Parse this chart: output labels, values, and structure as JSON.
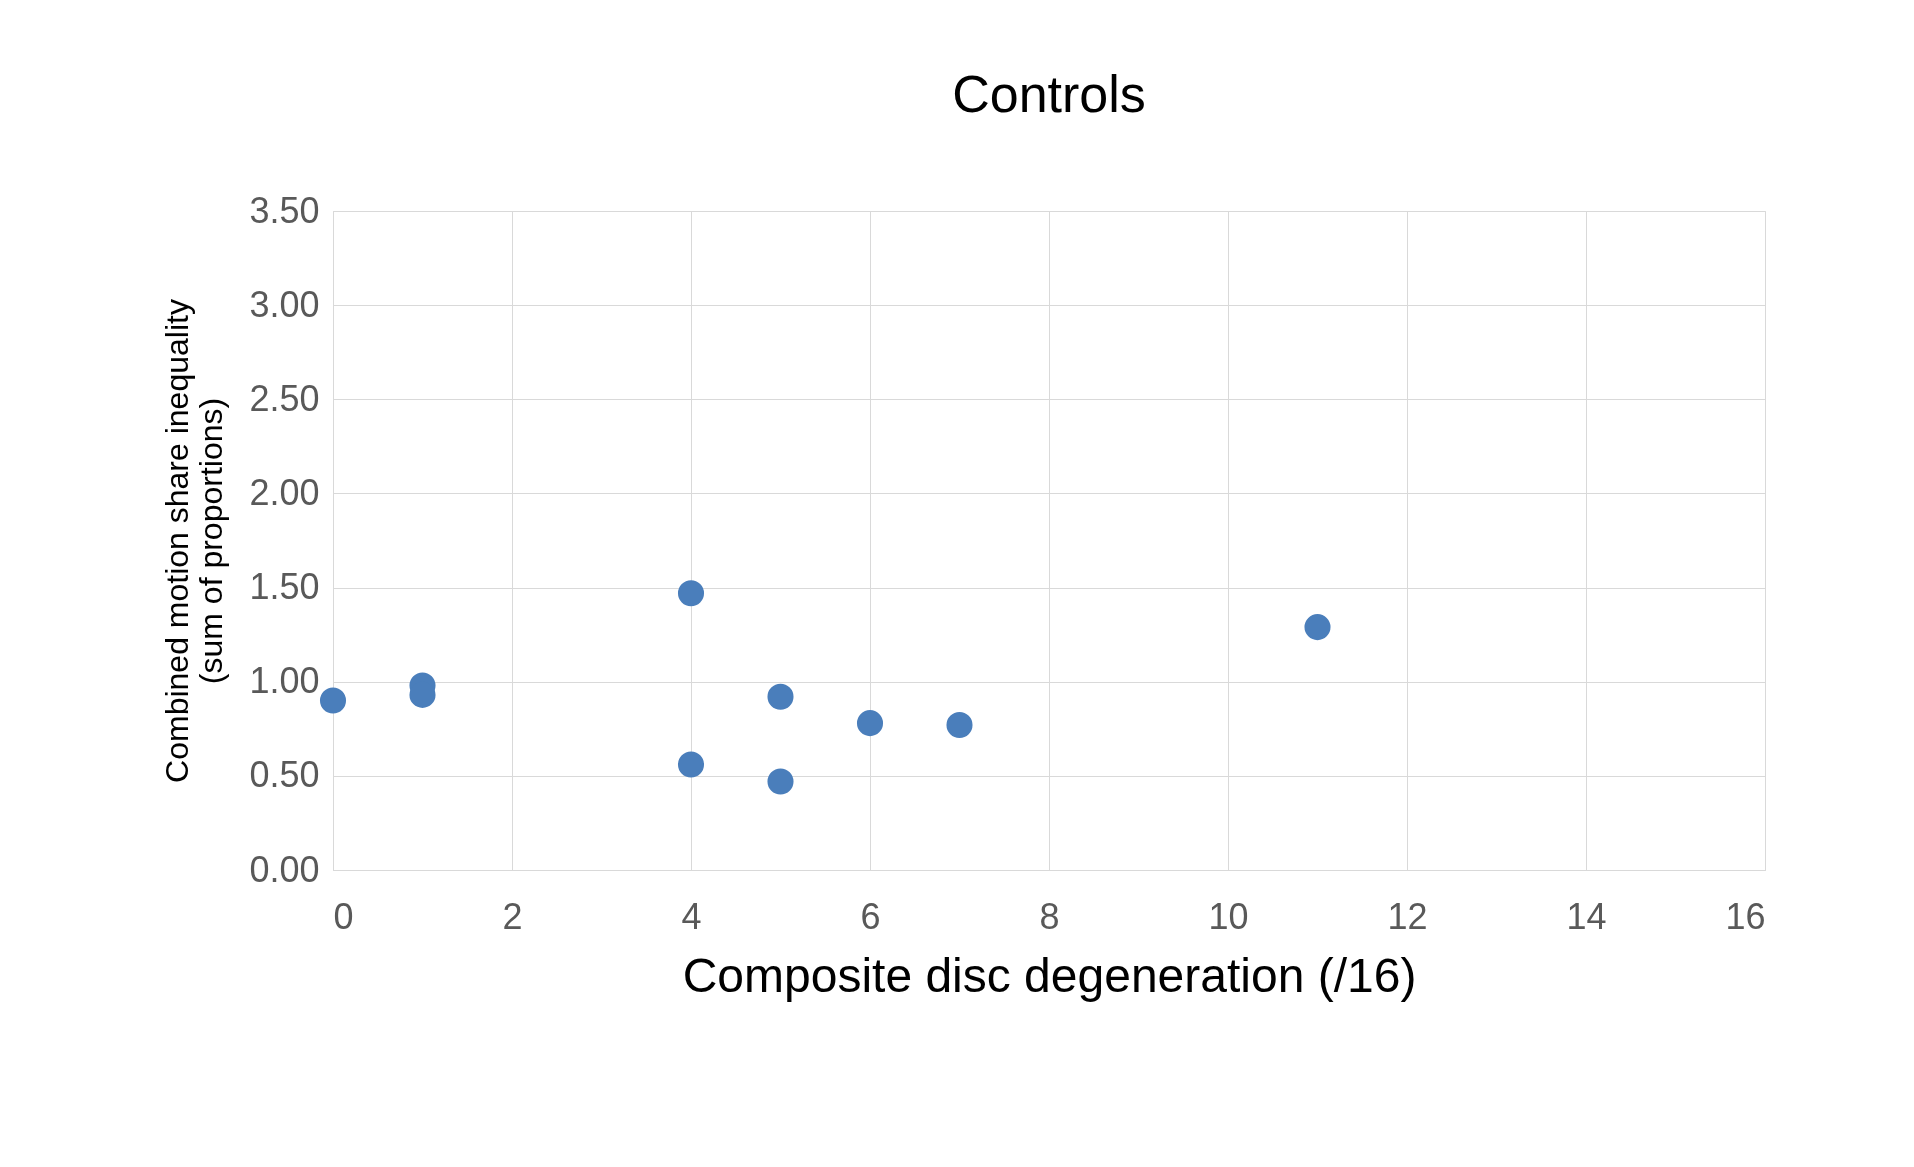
{
  "chart_data": {
    "type": "scatter",
    "title": "Controls",
    "xlabel": "Composite disc degeneration (/16)",
    "ylabel": "Combined motion share inequality\n(sum of proportions)",
    "x": [
      0,
      1,
      1,
      4,
      4,
      5,
      5,
      6,
      7,
      11
    ],
    "series": [
      {
        "color": "#4a7ebb",
        "values": [
          0.9,
          0.98,
          0.93,
          1.47,
          0.56,
          0.92,
          0.47,
          0.78,
          0.77,
          1.29
        ]
      }
    ],
    "xlim": [
      0,
      16
    ],
    "xticks": [
      0,
      2,
      4,
      6,
      8,
      10,
      12,
      14,
      16
    ],
    "ylim": [
      0,
      3.5
    ],
    "yticks": [
      {
        "value": 0,
        "label": "0.00"
      },
      {
        "value": 0.5,
        "label": "0.50"
      },
      {
        "value": 1,
        "label": "1.00"
      },
      {
        "value": 1.5,
        "label": "1.50"
      },
      {
        "value": 2,
        "label": "2.00"
      },
      {
        "value": 2.5,
        "label": "2.50"
      },
      {
        "value": 3,
        "label": "3.00"
      },
      {
        "value": 3.5,
        "label": "3.50"
      }
    ],
    "grid": true,
    "marker": "circle"
  }
}
